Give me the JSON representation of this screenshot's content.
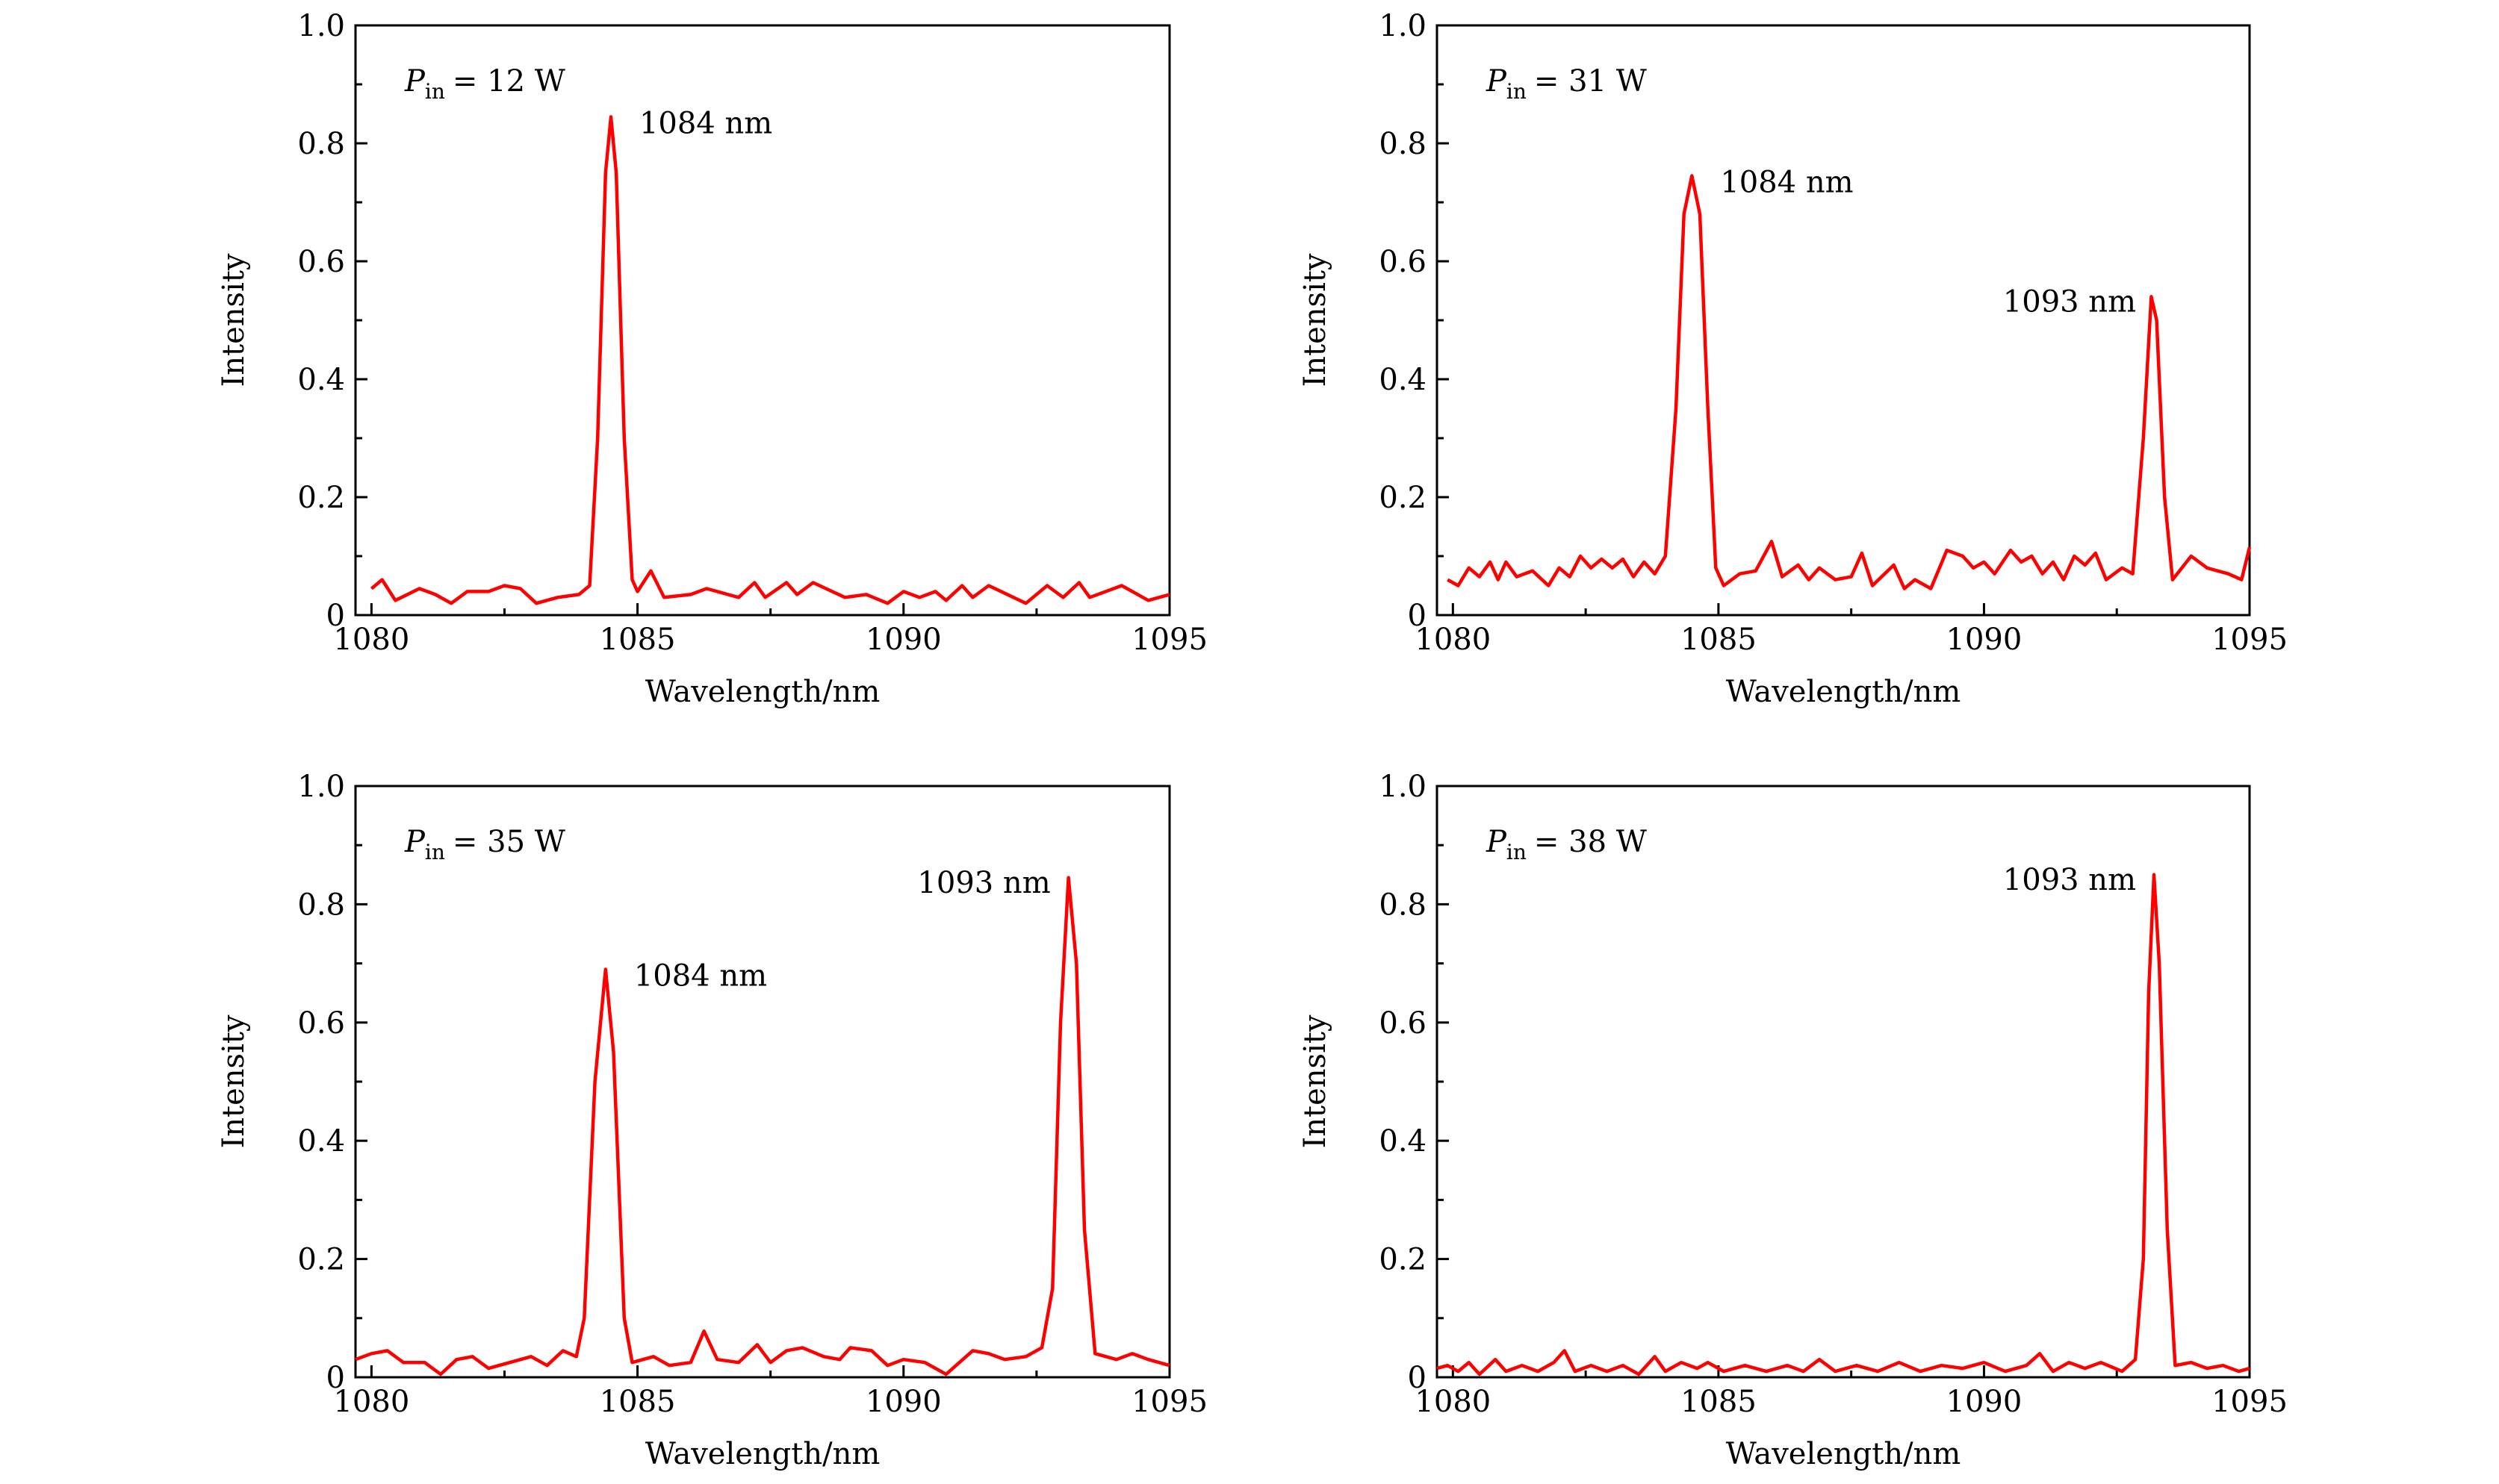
{
  "chart_data": [
    {
      "type": "line",
      "title": "",
      "annotation_main": "P",
      "annotation_sub": "in",
      "annotation_value": "= 12 W",
      "xlabel": "Wavelength/nm",
      "ylabel": "Intensity",
      "xlim": [
        1079.7,
        1095
      ],
      "ylim": [
        0,
        1.0
      ],
      "xticks": [
        "1080",
        "1085",
        "1090",
        "1095"
      ],
      "yticks": [
        "0",
        "0.2",
        "0.4",
        "0.6",
        "0.8",
        "1.0"
      ],
      "line_color": "#ff0000",
      "peaks": [
        {
          "label": "1084 nm",
          "x": 1084.5,
          "y": 0.845,
          "side": "right"
        }
      ],
      "points": [
        [
          1080,
          0.045
        ],
        [
          1080.2,
          0.06
        ],
        [
          1080.45,
          0.025
        ],
        [
          1080.9,
          0.045
        ],
        [
          1081.2,
          0.035
        ],
        [
          1081.5,
          0.02
        ],
        [
          1081.8,
          0.04
        ],
        [
          1082.2,
          0.04
        ],
        [
          1082.5,
          0.05
        ],
        [
          1082.8,
          0.045
        ],
        [
          1083.1,
          0.02
        ],
        [
          1083.5,
          0.03
        ],
        [
          1083.9,
          0.035
        ],
        [
          1084.1,
          0.05
        ],
        [
          1084.25,
          0.3
        ],
        [
          1084.4,
          0.75
        ],
        [
          1084.5,
          0.845
        ],
        [
          1084.6,
          0.75
        ],
        [
          1084.75,
          0.3
        ],
        [
          1084.9,
          0.06
        ],
        [
          1085.0,
          0.04
        ],
        [
          1085.25,
          0.075
        ],
        [
          1085.5,
          0.03
        ],
        [
          1086,
          0.035
        ],
        [
          1086.3,
          0.045
        ],
        [
          1086.9,
          0.03
        ],
        [
          1087.2,
          0.055
        ],
        [
          1087.4,
          0.03
        ],
        [
          1087.8,
          0.055
        ],
        [
          1088,
          0.035
        ],
        [
          1088.3,
          0.055
        ],
        [
          1088.9,
          0.03
        ],
        [
          1089.3,
          0.035
        ],
        [
          1089.7,
          0.02
        ],
        [
          1090,
          0.04
        ],
        [
          1090.3,
          0.03
        ],
        [
          1090.6,
          0.04
        ],
        [
          1090.8,
          0.025
        ],
        [
          1091.1,
          0.05
        ],
        [
          1091.3,
          0.03
        ],
        [
          1091.6,
          0.05
        ],
        [
          1092.3,
          0.02
        ],
        [
          1092.7,
          0.05
        ],
        [
          1093.0,
          0.03
        ],
        [
          1093.3,
          0.055
        ],
        [
          1093.5,
          0.03
        ],
        [
          1094.1,
          0.05
        ],
        [
          1094.6,
          0.025
        ],
        [
          1095,
          0.035
        ]
      ]
    },
    {
      "type": "line",
      "annotation_main": "P",
      "annotation_sub": "in",
      "annotation_value": "= 31 W",
      "xlabel": "Wavelength/nm",
      "ylabel": "Intensity",
      "xlim": [
        1079.7,
        1095
      ],
      "ylim": [
        0,
        1.0
      ],
      "xticks": [
        "1080",
        "1085",
        "1090",
        "1095"
      ],
      "yticks": [
        "0",
        "0.2",
        "0.4",
        "0.6",
        "0.8",
        "1.0"
      ],
      "line_color": "#ff0000",
      "peaks": [
        {
          "label": "1084 nm",
          "x": 1084.5,
          "y": 0.745,
          "side": "right"
        },
        {
          "label": "1093 nm",
          "x": 1093.2,
          "y": 0.54,
          "side": "left"
        }
      ],
      "points": [
        [
          1079.9,
          0.06
        ],
        [
          1080.1,
          0.05
        ],
        [
          1080.3,
          0.08
        ],
        [
          1080.5,
          0.065
        ],
        [
          1080.7,
          0.09
        ],
        [
          1080.85,
          0.06
        ],
        [
          1081.0,
          0.09
        ],
        [
          1081.2,
          0.065
        ],
        [
          1081.5,
          0.075
        ],
        [
          1081.8,
          0.05
        ],
        [
          1082.0,
          0.08
        ],
        [
          1082.2,
          0.065
        ],
        [
          1082.4,
          0.1
        ],
        [
          1082.6,
          0.08
        ],
        [
          1082.8,
          0.095
        ],
        [
          1083.0,
          0.08
        ],
        [
          1083.2,
          0.095
        ],
        [
          1083.4,
          0.065
        ],
        [
          1083.6,
          0.09
        ],
        [
          1083.8,
          0.07
        ],
        [
          1084.0,
          0.1
        ],
        [
          1084.2,
          0.35
        ],
        [
          1084.35,
          0.68
        ],
        [
          1084.5,
          0.745
        ],
        [
          1084.65,
          0.68
        ],
        [
          1084.8,
          0.35
        ],
        [
          1084.95,
          0.08
        ],
        [
          1085.1,
          0.05
        ],
        [
          1085.4,
          0.07
        ],
        [
          1085.7,
          0.075
        ],
        [
          1086.0,
          0.125
        ],
        [
          1086.2,
          0.065
        ],
        [
          1086.5,
          0.085
        ],
        [
          1086.7,
          0.06
        ],
        [
          1086.9,
          0.08
        ],
        [
          1087.2,
          0.06
        ],
        [
          1087.5,
          0.065
        ],
        [
          1087.7,
          0.105
        ],
        [
          1087.9,
          0.05
        ],
        [
          1088.3,
          0.085
        ],
        [
          1088.5,
          0.045
        ],
        [
          1088.7,
          0.06
        ],
        [
          1089.0,
          0.045
        ],
        [
          1089.3,
          0.11
        ],
        [
          1089.6,
          0.1
        ],
        [
          1089.8,
          0.08
        ],
        [
          1090.0,
          0.09
        ],
        [
          1090.2,
          0.07
        ],
        [
          1090.5,
          0.11
        ],
        [
          1090.7,
          0.09
        ],
        [
          1090.9,
          0.1
        ],
        [
          1091.1,
          0.07
        ],
        [
          1091.3,
          0.09
        ],
        [
          1091.5,
          0.06
        ],
        [
          1091.7,
          0.1
        ],
        [
          1091.9,
          0.085
        ],
        [
          1092.1,
          0.105
        ],
        [
          1092.3,
          0.06
        ],
        [
          1092.6,
          0.08
        ],
        [
          1092.8,
          0.07
        ],
        [
          1093.0,
          0.3
        ],
        [
          1093.15,
          0.54
        ],
        [
          1093.25,
          0.5
        ],
        [
          1093.4,
          0.2
        ],
        [
          1093.55,
          0.06
        ],
        [
          1093.9,
          0.1
        ],
        [
          1094.2,
          0.08
        ],
        [
          1094.6,
          0.07
        ],
        [
          1094.85,
          0.06
        ],
        [
          1095,
          0.115
        ]
      ]
    },
    {
      "type": "line",
      "annotation_main": "P",
      "annotation_sub": "in",
      "annotation_value": "= 35 W",
      "xlabel": "Wavelength/nm",
      "ylabel": "Intensity",
      "xlim": [
        1079.7,
        1095
      ],
      "ylim": [
        0,
        1.0
      ],
      "xticks": [
        "1080",
        "1085",
        "1090",
        "1095"
      ],
      "yticks": [
        "0",
        "0.2",
        "0.4",
        "0.6",
        "0.8",
        "1.0"
      ],
      "line_color": "#ff0000",
      "peaks": [
        {
          "label": "1084 nm",
          "x": 1084.4,
          "y": 0.69,
          "side": "right"
        },
        {
          "label": "1093 nm",
          "x": 1093.1,
          "y": 0.845,
          "side": "left"
        }
      ],
      "points": [
        [
          1079.7,
          0.03
        ],
        [
          1080.0,
          0.04
        ],
        [
          1080.3,
          0.045
        ],
        [
          1080.6,
          0.025
        ],
        [
          1081.0,
          0.025
        ],
        [
          1081.3,
          0.005
        ],
        [
          1081.6,
          0.03
        ],
        [
          1081.9,
          0.035
        ],
        [
          1082.2,
          0.015
        ],
        [
          1082.6,
          0.025
        ],
        [
          1083.0,
          0.035
        ],
        [
          1083.3,
          0.02
        ],
        [
          1083.6,
          0.045
        ],
        [
          1083.85,
          0.035
        ],
        [
          1084.0,
          0.1
        ],
        [
          1084.2,
          0.5
        ],
        [
          1084.4,
          0.69
        ],
        [
          1084.55,
          0.55
        ],
        [
          1084.75,
          0.1
        ],
        [
          1084.9,
          0.025
        ],
        [
          1085.3,
          0.035
        ],
        [
          1085.6,
          0.02
        ],
        [
          1086.0,
          0.025
        ],
        [
          1086.25,
          0.078
        ],
        [
          1086.5,
          0.03
        ],
        [
          1086.9,
          0.025
        ],
        [
          1087.25,
          0.055
        ],
        [
          1087.5,
          0.025
        ],
        [
          1087.8,
          0.045
        ],
        [
          1088.1,
          0.05
        ],
        [
          1088.5,
          0.035
        ],
        [
          1088.8,
          0.03
        ],
        [
          1089.0,
          0.05
        ],
        [
          1089.4,
          0.045
        ],
        [
          1089.7,
          0.02
        ],
        [
          1090.0,
          0.03
        ],
        [
          1090.4,
          0.025
        ],
        [
          1090.8,
          0.005
        ],
        [
          1091.3,
          0.045
        ],
        [
          1091.6,
          0.04
        ],
        [
          1091.9,
          0.03
        ],
        [
          1092.3,
          0.035
        ],
        [
          1092.6,
          0.05
        ],
        [
          1092.8,
          0.15
        ],
        [
          1092.95,
          0.6
        ],
        [
          1093.1,
          0.845
        ],
        [
          1093.25,
          0.7
        ],
        [
          1093.4,
          0.25
        ],
        [
          1093.6,
          0.04
        ],
        [
          1094.0,
          0.03
        ],
        [
          1094.3,
          0.04
        ],
        [
          1094.6,
          0.03
        ],
        [
          1095,
          0.02
        ]
      ]
    },
    {
      "type": "line",
      "annotation_main": "P",
      "annotation_sub": "in",
      "annotation_value": "= 38 W",
      "xlabel": "Wavelength/nm",
      "ylabel": "Intensity",
      "xlim": [
        1079.7,
        1095
      ],
      "ylim": [
        0,
        1.0
      ],
      "xticks": [
        "1080",
        "1085",
        "1090",
        "1095"
      ],
      "yticks": [
        "0",
        "0.2",
        "0.4",
        "0.6",
        "0.8",
        "1.0"
      ],
      "line_color": "#ff0000",
      "peaks": [
        {
          "label": "1093 nm",
          "x": 1093.2,
          "y": 0.85,
          "side": "left"
        }
      ],
      "points": [
        [
          1079.7,
          0.015
        ],
        [
          1079.9,
          0.02
        ],
        [
          1080.1,
          0.01
        ],
        [
          1080.3,
          0.025
        ],
        [
          1080.5,
          0.005
        ],
        [
          1080.8,
          0.03
        ],
        [
          1081.0,
          0.01
        ],
        [
          1081.3,
          0.02
        ],
        [
          1081.6,
          0.01
        ],
        [
          1081.9,
          0.025
        ],
        [
          1082.1,
          0.045
        ],
        [
          1082.3,
          0.01
        ],
        [
          1082.6,
          0.02
        ],
        [
          1082.9,
          0.01
        ],
        [
          1083.2,
          0.02
        ],
        [
          1083.5,
          0.005
        ],
        [
          1083.8,
          0.035
        ],
        [
          1084.0,
          0.01
        ],
        [
          1084.3,
          0.025
        ],
        [
          1084.6,
          0.015
        ],
        [
          1084.8,
          0.025
        ],
        [
          1085.1,
          0.01
        ],
        [
          1085.5,
          0.02
        ],
        [
          1085.9,
          0.01
        ],
        [
          1086.3,
          0.02
        ],
        [
          1086.6,
          0.01
        ],
        [
          1086.9,
          0.03
        ],
        [
          1087.2,
          0.01
        ],
        [
          1087.6,
          0.02
        ],
        [
          1088.0,
          0.01
        ],
        [
          1088.4,
          0.025
        ],
        [
          1088.8,
          0.01
        ],
        [
          1089.2,
          0.02
        ],
        [
          1089.6,
          0.015
        ],
        [
          1090.0,
          0.025
        ],
        [
          1090.4,
          0.01
        ],
        [
          1090.8,
          0.02
        ],
        [
          1091.05,
          0.04
        ],
        [
          1091.3,
          0.01
        ],
        [
          1091.6,
          0.025
        ],
        [
          1091.9,
          0.015
        ],
        [
          1092.2,
          0.025
        ],
        [
          1092.6,
          0.01
        ],
        [
          1092.85,
          0.03
        ],
        [
          1093.0,
          0.2
        ],
        [
          1093.1,
          0.65
        ],
        [
          1093.2,
          0.85
        ],
        [
          1093.3,
          0.7
        ],
        [
          1093.45,
          0.25
        ],
        [
          1093.6,
          0.02
        ],
        [
          1093.9,
          0.025
        ],
        [
          1094.2,
          0.015
        ],
        [
          1094.5,
          0.02
        ],
        [
          1094.8,
          0.01
        ],
        [
          1095,
          0.015
        ]
      ]
    }
  ]
}
